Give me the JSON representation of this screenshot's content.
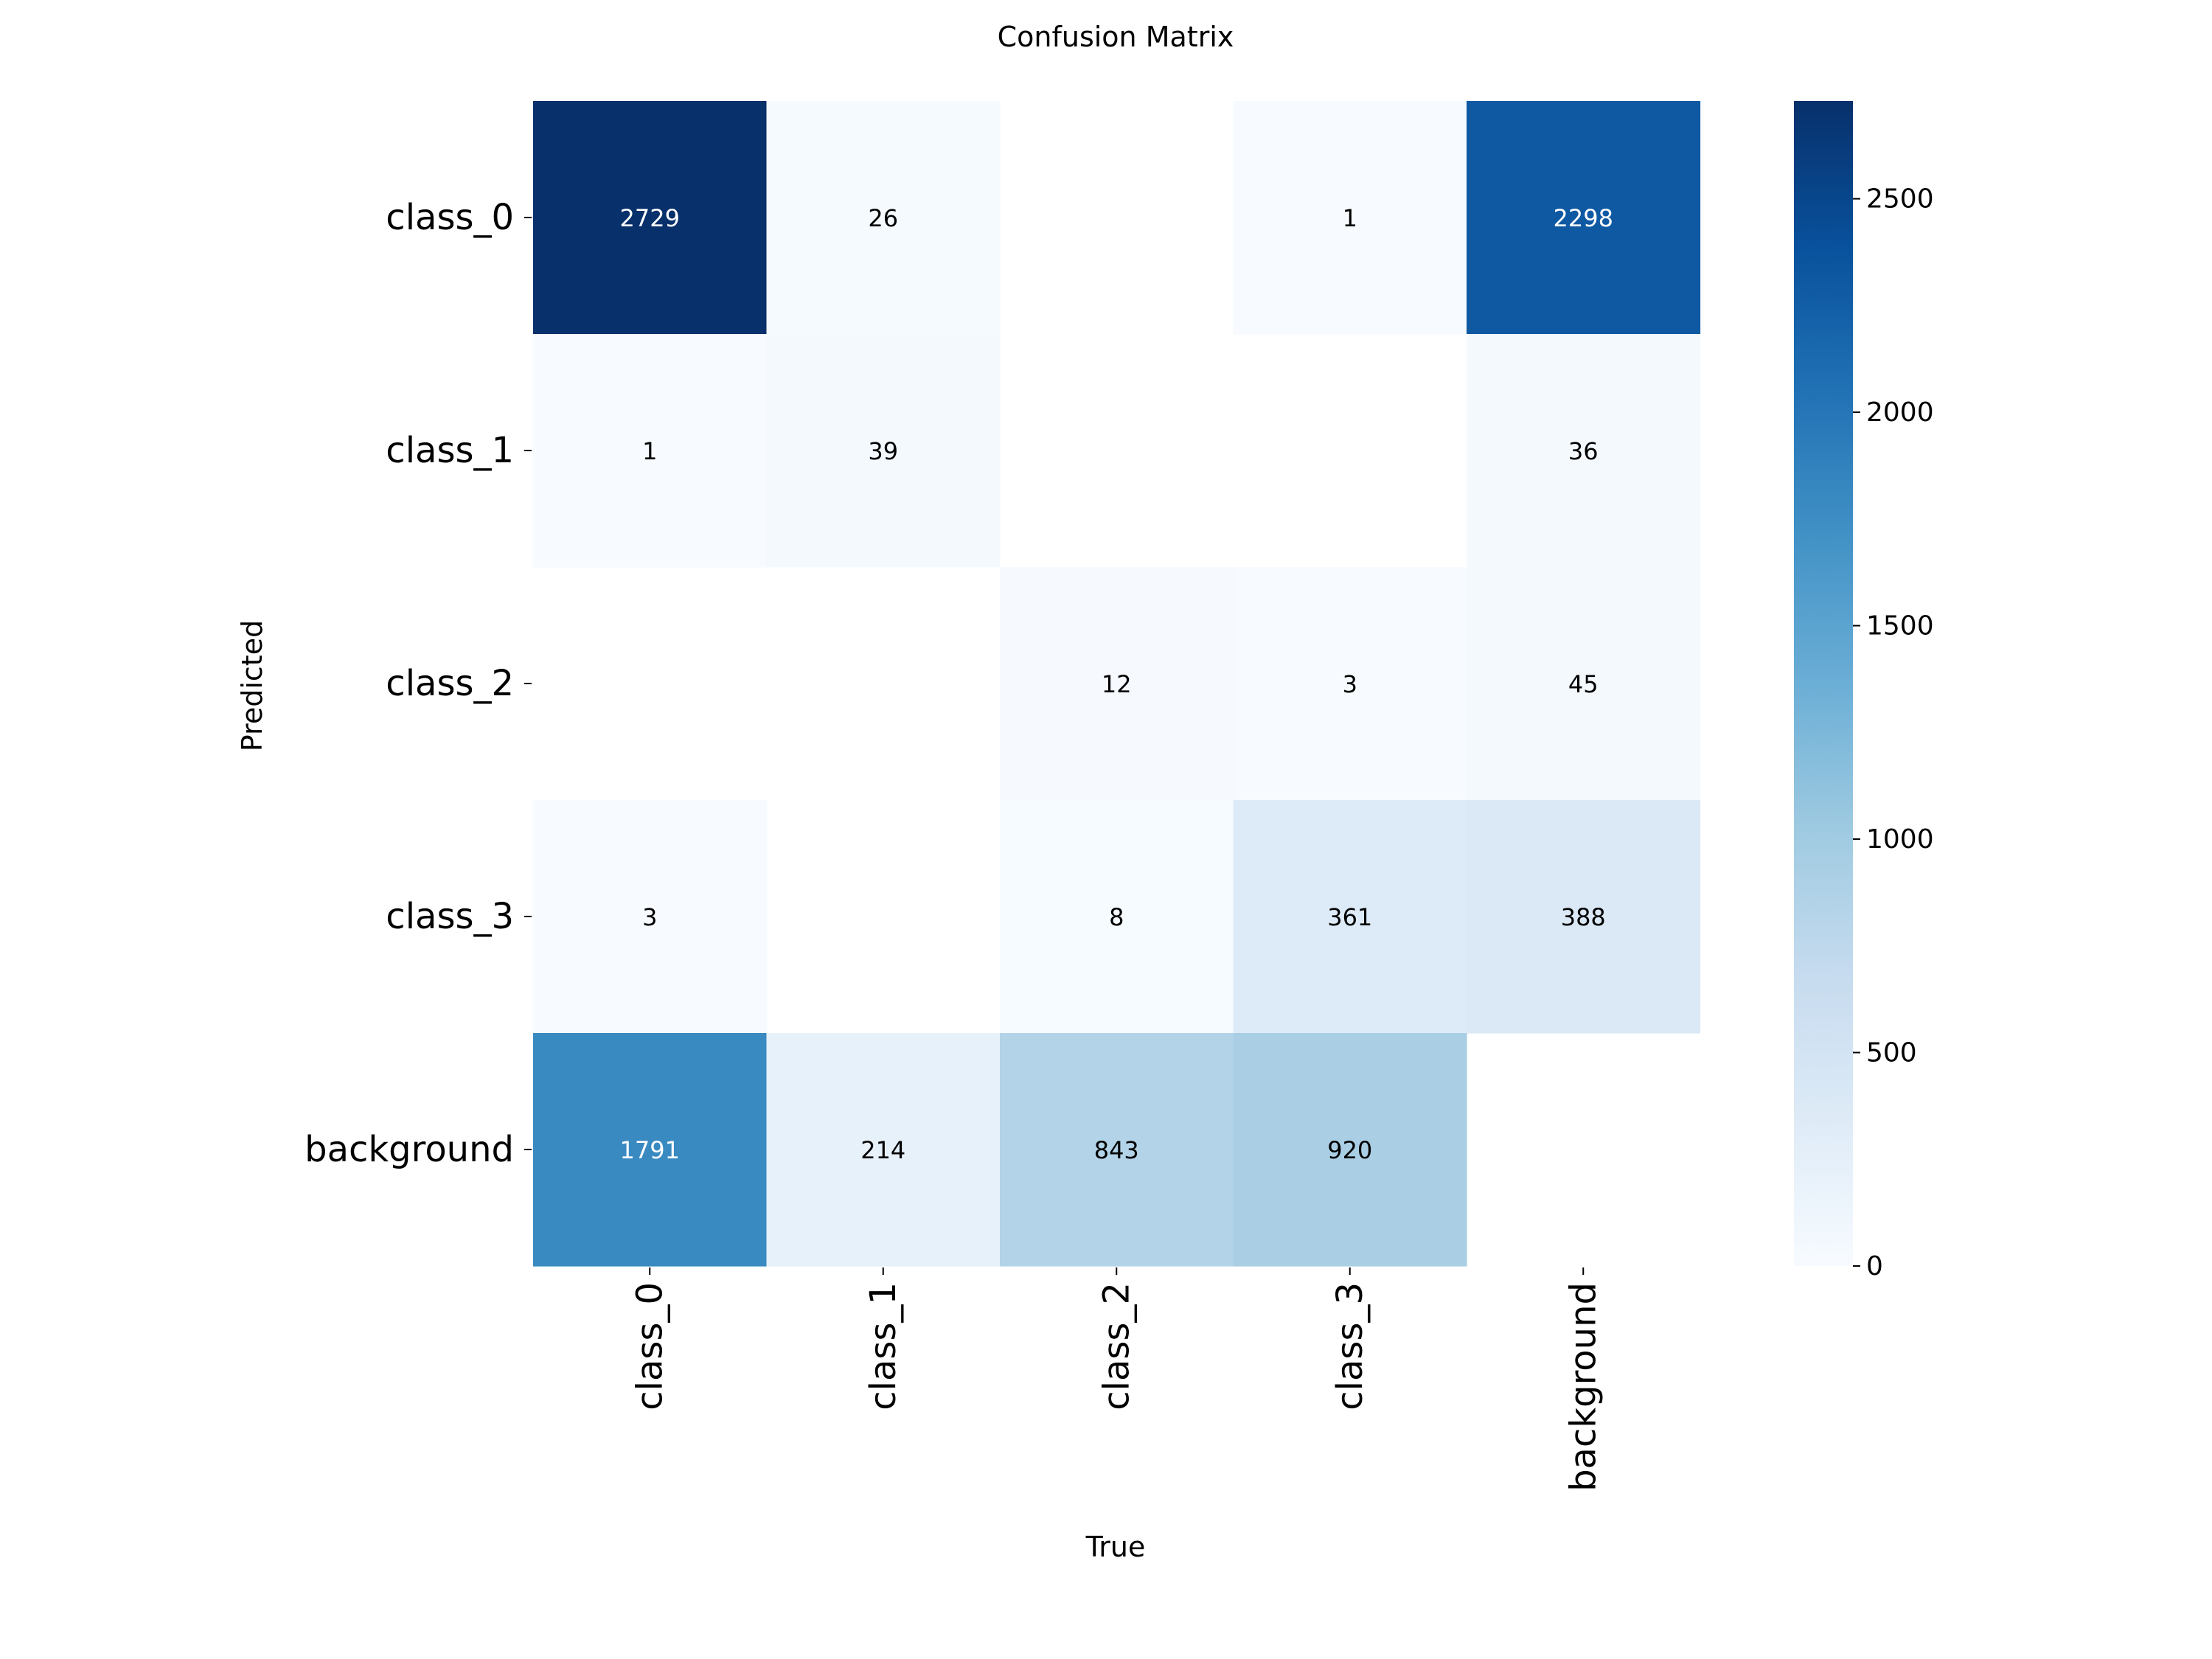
{
  "chart_data": {
    "type": "heatmap",
    "title": "Confusion Matrix",
    "xlabel": "True",
    "ylabel": "Predicted",
    "x_categories": [
      "class_0",
      "class_1",
      "class_2",
      "class_3",
      "background"
    ],
    "y_categories": [
      "class_0",
      "class_1",
      "class_2",
      "class_3",
      "background"
    ],
    "matrix": [
      [
        2729,
        26,
        null,
        1,
        2298
      ],
      [
        1,
        39,
        null,
        null,
        36
      ],
      [
        null,
        null,
        12,
        3,
        45
      ],
      [
        3,
        null,
        8,
        361,
        388
      ],
      [
        1791,
        214,
        843,
        920,
        null
      ]
    ],
    "colorbar": {
      "min": 0,
      "max": 2729,
      "ticks": [
        0,
        500,
        1000,
        1500,
        2000,
        2500
      ],
      "colormap": "Blues"
    },
    "grid": false,
    "legend": "colorbar-right"
  }
}
